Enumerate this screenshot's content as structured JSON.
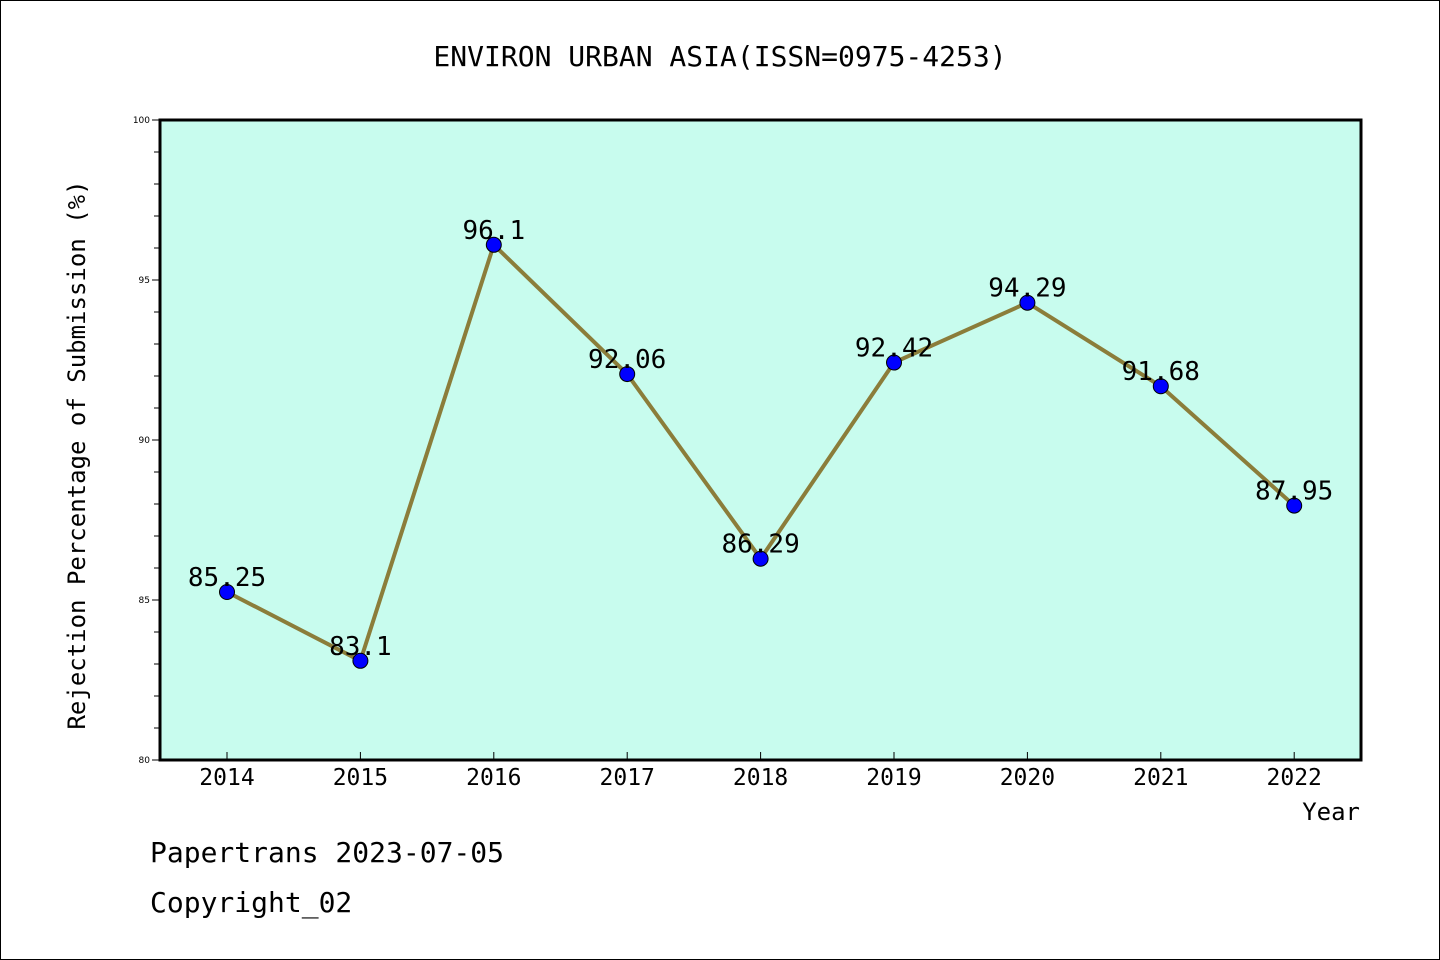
{
  "chart_data": {
    "type": "line",
    "title": "ENVIRON URBAN ASIA(ISSN=0975-4253)",
    "xlabel": "Year",
    "ylabel": "Rejection Percentage of Submission (%)",
    "ylim": [
      80,
      100
    ],
    "yticks": [
      "80",
      "85",
      "90",
      "95",
      "100"
    ],
    "categories": [
      "2014",
      "2015",
      "2016",
      "2017",
      "2018",
      "2019",
      "2020",
      "2021",
      "2022"
    ],
    "values": [
      85.25,
      83.1,
      96.1,
      92.06,
      86.29,
      92.42,
      94.29,
      91.68,
      87.95
    ],
    "value_labels": [
      "85.25",
      "83.1",
      "96.1",
      "92.06",
      "86.29",
      "92.42",
      "94.29",
      "91.68",
      "87.95"
    ],
    "grid": false,
    "colors": {
      "plot_background": "#c8fcee",
      "line": "#8b7d3a",
      "marker": "#0000ff"
    }
  },
  "footer": {
    "line1": "Papertrans 2023-07-05",
    "line2": "Copyright_02"
  }
}
